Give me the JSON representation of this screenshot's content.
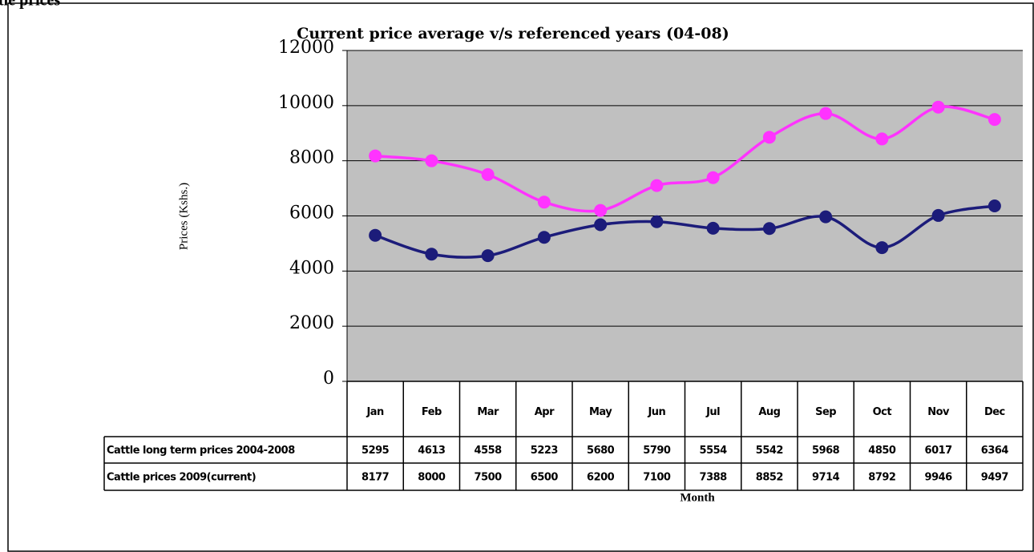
{
  "chart_data": {
    "type": "line",
    "heading": "tle prices",
    "title": "Current price average v/s referenced years (04-08)",
    "y_label": "Prices (Kshs.)",
    "x_label": "Month",
    "categories": [
      "Jan",
      "Feb",
      "Mar",
      "Apr",
      "May",
      "Jun",
      "Jul",
      "Aug",
      "Sep",
      "Oct",
      "Nov",
      "Dec"
    ],
    "series": [
      {
        "name": "Cattle long term prices 2004-2008",
        "color": "#1c1c7a",
        "values": [
          5295,
          4613,
          4558,
          5223,
          5680,
          5790,
          5554,
          5542,
          5968,
          4850,
          6017,
          6364
        ]
      },
      {
        "name": "Cattle prices 2009(current)",
        "color": "#ff33ff",
        "values": [
          8177,
          8000,
          7500,
          6500,
          6200,
          7100,
          7388,
          8852,
          9714,
          8792,
          9946,
          9497
        ]
      }
    ],
    "ylim": [
      0,
      12000
    ],
    "yticks": [
      0,
      2000,
      4000,
      6000,
      8000,
      10000,
      12000
    ],
    "grid": true
  }
}
